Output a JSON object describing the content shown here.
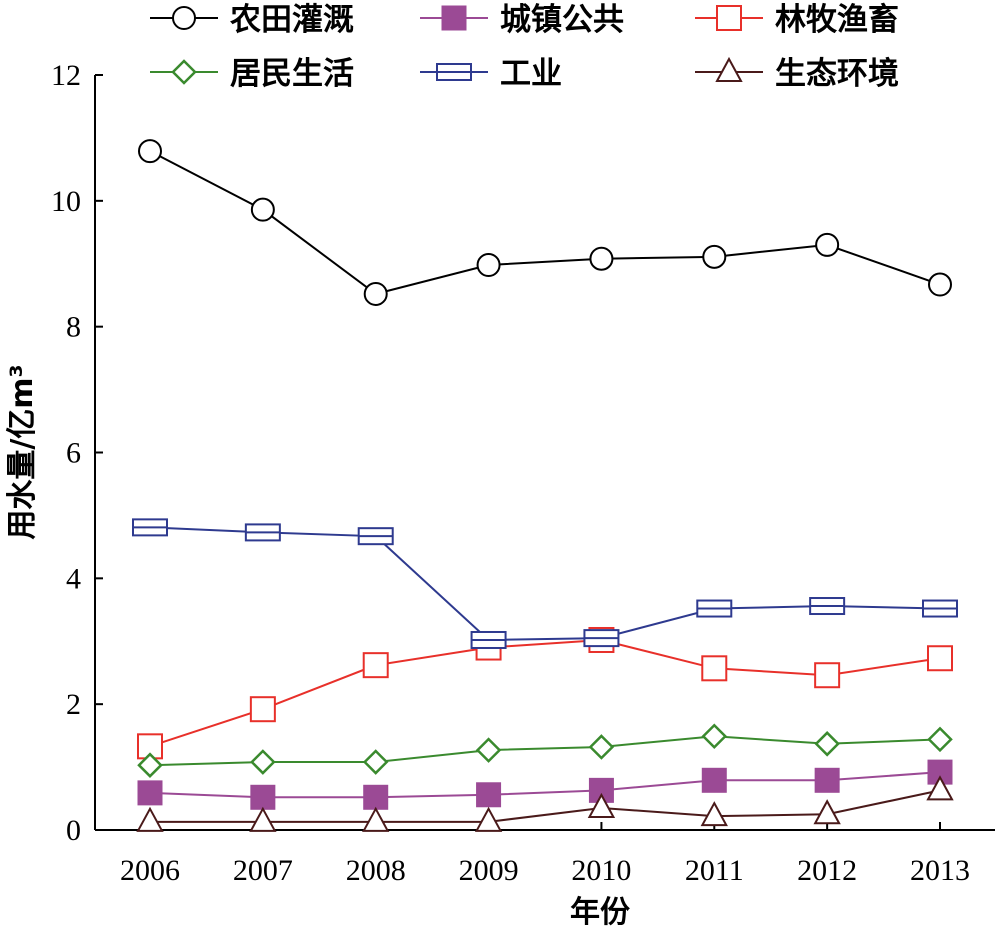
{
  "chart_data": {
    "type": "line",
    "title": "",
    "xlabel": "年份",
    "ylabel": "用水量/亿m³",
    "x": [
      2006,
      2007,
      2008,
      2009,
      2010,
      2011,
      2012,
      2013
    ],
    "x_tick_labels": [
      "2006",
      "2007",
      "2008",
      "2009",
      "2010",
      "2011",
      "2012",
      "2013"
    ],
    "ylim": [
      0,
      12
    ],
    "y_ticks": [
      0,
      2,
      4,
      6,
      8,
      10,
      12
    ],
    "y_tick_labels": [
      "0",
      "2",
      "4",
      "6",
      "8",
      "10",
      "12"
    ],
    "grid": false,
    "legend_placement": "top",
    "series": [
      {
        "name": "农田灌溉",
        "marker": "circle",
        "color": "#000000",
        "values": [
          10.79,
          9.86,
          8.52,
          8.98,
          9.08,
          9.11,
          9.3,
          8.67
        ]
      },
      {
        "name": "城镇公共",
        "marker": "filled-square",
        "color": "#9b4a95",
        "values": [
          0.59,
          0.52,
          0.52,
          0.56,
          0.63,
          0.79,
          0.79,
          0.92
        ]
      },
      {
        "name": "林牧渔畜",
        "marker": "square",
        "color": "#e8302a",
        "values": [
          1.33,
          1.92,
          2.62,
          2.9,
          3.02,
          2.57,
          2.46,
          2.73
        ]
      },
      {
        "name": "居民生活",
        "marker": "diamond",
        "color": "#3a8a2e",
        "values": [
          1.03,
          1.08,
          1.08,
          1.27,
          1.32,
          1.49,
          1.37,
          1.44
        ]
      },
      {
        "name": "工业",
        "marker": "double-rect",
        "color": "#2e3a8f",
        "values": [
          4.81,
          4.73,
          4.67,
          3.02,
          3.05,
          3.52,
          3.56,
          3.52
        ]
      },
      {
        "name": "生态环境",
        "marker": "triangle",
        "color": "#4a1a1a",
        "values": [
          0.13,
          0.13,
          0.13,
          0.13,
          0.35,
          0.22,
          0.25,
          0.63
        ]
      }
    ]
  }
}
